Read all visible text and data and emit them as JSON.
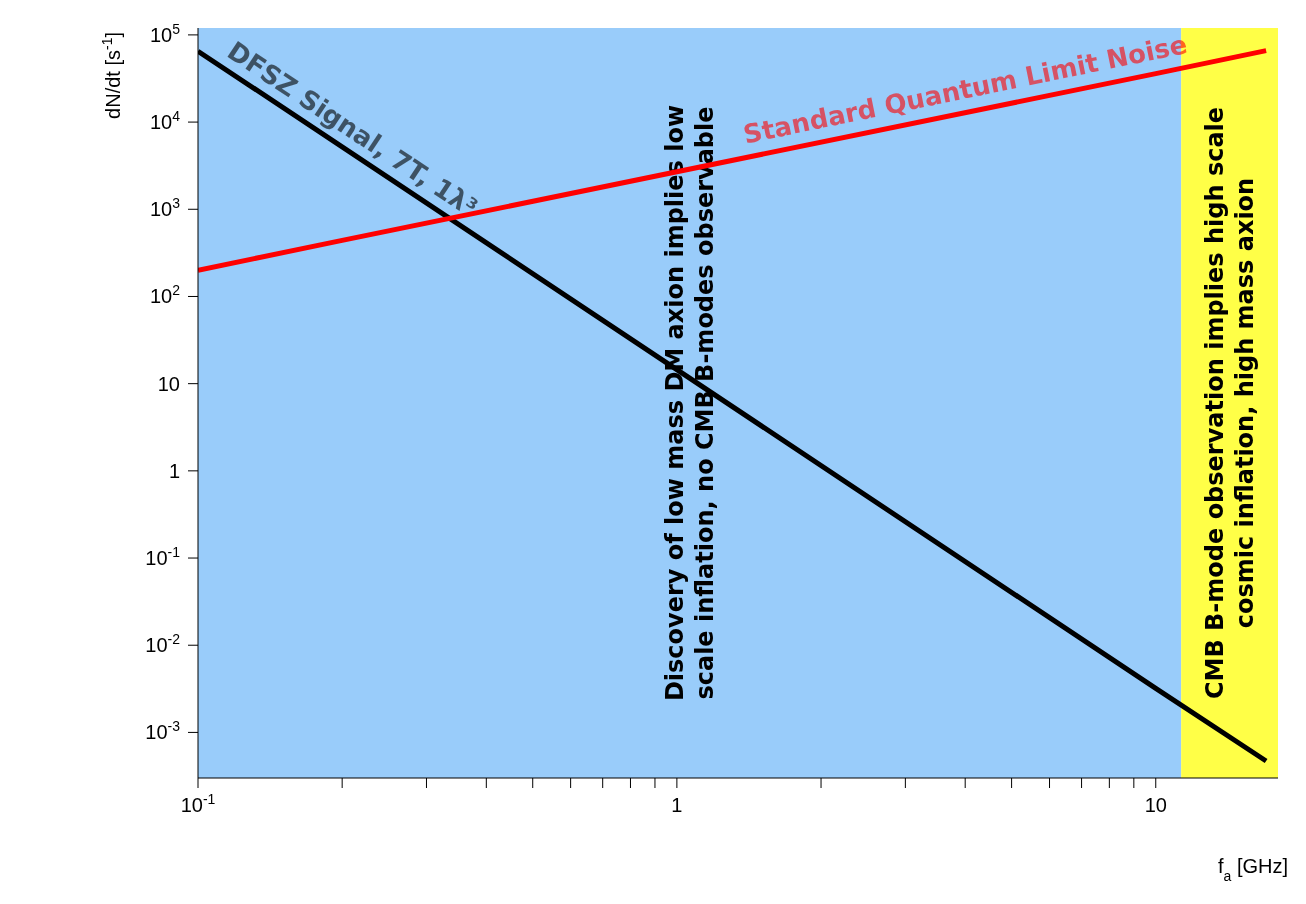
{
  "chart_data": {
    "type": "line",
    "xlabel": "f$_{a}$ [GHz]",
    "ylabel": "dN/dt [s$^{-1}$]",
    "log": "xy",
    "xlim": [
      0.1,
      18
    ],
    "ylim": [
      0.0003,
      120000
    ],
    "xticks": [
      {
        "value": 0.1,
        "label": "10$^{-1}$"
      },
      {
        "value": 0.2,
        "label": null
      },
      {
        "value": 0.3,
        "label": null
      },
      {
        "value": 0.4,
        "label": null
      },
      {
        "value": 0.5,
        "label": null
      },
      {
        "value": 0.6,
        "label": null
      },
      {
        "value": 0.7,
        "label": null
      },
      {
        "value": 0.8,
        "label": null
      },
      {
        "value": 0.9,
        "label": null
      },
      1,
      {
        "value": 2,
        "label": null
      },
      {
        "value": 3,
        "label": null
      },
      {
        "value": 4,
        "label": null
      },
      {
        "value": 5,
        "label": null
      },
      {
        "value": 6,
        "label": null
      },
      {
        "value": 7,
        "label": null
      },
      {
        "value": 8,
        "label": null
      },
      {
        "value": 9,
        "label": null
      },
      10
    ],
    "yticks": [
      {
        "value": 0.001,
        "label": "10$^{-3}$"
      },
      {
        "value": 0.01,
        "label": "10$^{-2}$"
      },
      {
        "value": 0.1,
        "label": "10$^{-1}$"
      },
      1,
      10,
      {
        "value": 100,
        "label": "10$^{2}$"
      },
      {
        "value": 1000,
        "label": "10$^{3}$"
      },
      {
        "value": 10000,
        "label": "10$^{4}$"
      },
      {
        "value": 100000,
        "label": "10$^{5}$"
      }
    ],
    "series": [
      {
        "color": "#000000",
        "x": [
          0.1,
          0.2,
          10,
          17
        ],
        "values": [
          65000,
          5200,
          0.0032,
          0.00047
        ]
      },
      {
        "color": "#ff0000",
        "x": [
          0.1,
          0.2,
          10,
          17
        ],
        "values": [
          200,
          440,
          36000,
          66000
        ]
      }
    ],
    "bands": [
      {
        "axis": "x",
        "from": 0.1,
        "to": 11.3,
        "color": "#8ec6fa",
        "label": "Discovery of low mass DM axion implies low\nscale inflation, no CMB B-modes observable"
      },
      {
        "axis": "x",
        "from": 11.3,
        "to": 18,
        "color": "#ffff33",
        "label": "CMB B-mode observation implies high scale\ncosmic inflation, high mass axion"
      }
    ],
    "annotations": [
      "DFSZ Signal, 7T, 1λ³",
      "Standard Quantum Limit Noise"
    ],
    "marker": "none",
    "line_style": "solid"
  }
}
